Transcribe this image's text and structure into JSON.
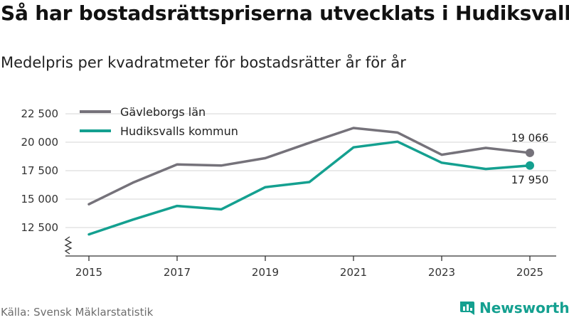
{
  "header": {
    "title": "Så har bostadsrättspriserna utvecklats i Hudiksvall",
    "subtitle": "Medelpris per kvadratmeter för bostadsrätter år för år"
  },
  "footer": {
    "source": "Källa: Svensk Mäklarstatistik",
    "brand": "Newsworthy"
  },
  "colors": {
    "gavleborg": "#75727a",
    "hudiksvall": "#14a090",
    "grid": "#dddddd",
    "axis": "#333333"
  },
  "chart_data": {
    "type": "line",
    "title": "Så har bostadsrättspriserna utvecklats i Hudiksvall",
    "subtitle": "Medelpris per kvadratmeter för bostadsrätter år för år",
    "x": [
      2015,
      2016,
      2017,
      2018,
      2019,
      2020,
      2021,
      2022,
      2023,
      2024,
      2025
    ],
    "xticks": [
      "2015",
      "2017",
      "2019",
      "2021",
      "2023",
      "2025"
    ],
    "yticks": [
      "12 500",
      "15 000",
      "17 500",
      "20 000",
      "22 500"
    ],
    "ylim": [
      10500,
      23000
    ],
    "axis_break": true,
    "legend_position": "top-left",
    "series": [
      {
        "name": "Gävleborgs län",
        "values": [
          14550,
          16450,
          18050,
          17950,
          18600,
          19950,
          21250,
          20850,
          18900,
          19500,
          19066
        ],
        "last_label": "19 066"
      },
      {
        "name": "Hudiksvalls kommun",
        "values": [
          11900,
          13200,
          14400,
          14100,
          16050,
          16500,
          19550,
          20050,
          18200,
          17650,
          17950
        ],
        "last_label": "17 950"
      }
    ]
  }
}
